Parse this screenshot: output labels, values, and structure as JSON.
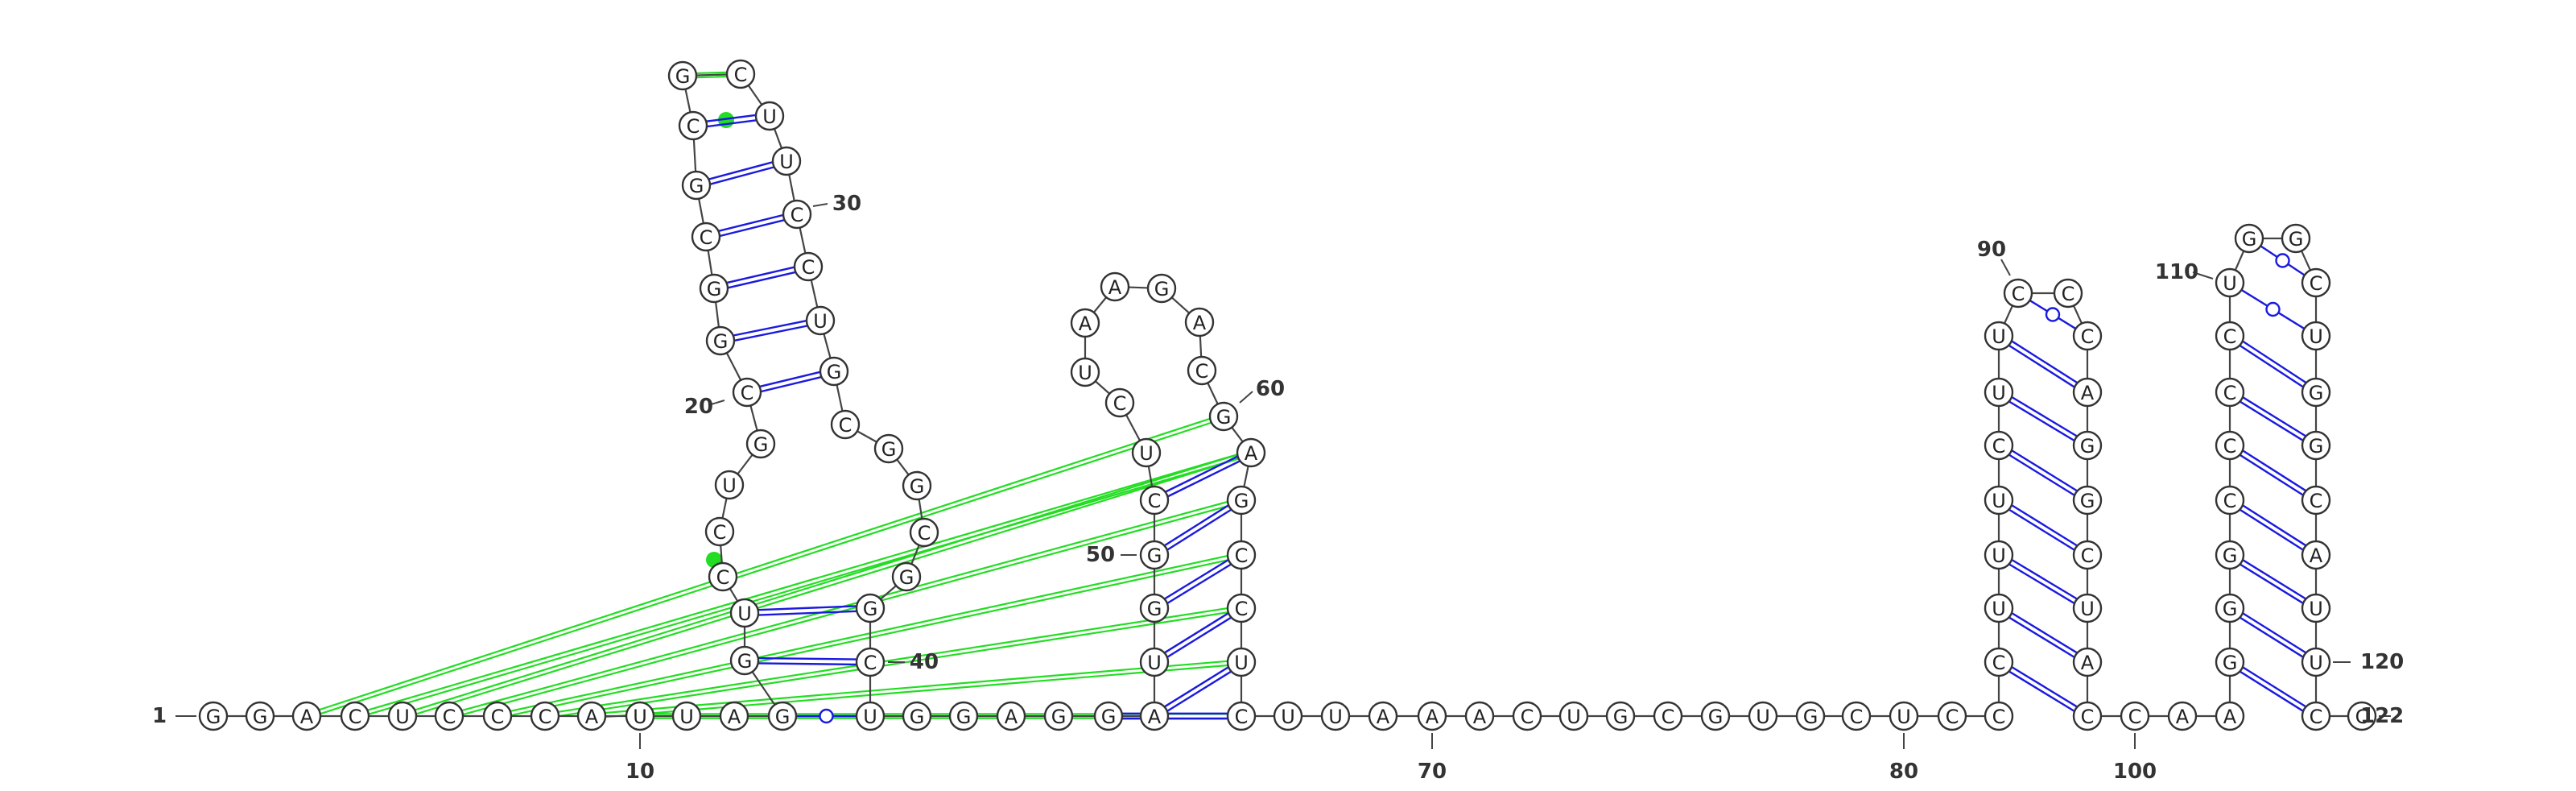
{
  "title": "RNA secondary structure diagram",
  "colors": {
    "background": "#ffffff",
    "watson_crick": "#1a1adf",
    "wobble": "#1a1adf",
    "pseudoknot": "#22dd22",
    "backbone": "#444444"
  },
  "sequence": "GGACUCCCAUUAGGUCCUGCGGCGCGCUUCCUGCGGCGGCUGGAGGAUGGCUCUAAGACGAGCCUCUUAAACUGCGUGCUCCCUUUCUUCCCAGGCUACCAAGGGCCCCUGGCUGGCAUUCC",
  "labels": {
    "n1": "1",
    "n10": "10",
    "n20": "20",
    "n30": "30",
    "n40": "40",
    "n50": "50",
    "n60": "60",
    "n70": "70",
    "n80": "80",
    "n90": "90",
    "n100": "100",
    "n110": "110",
    "n120": "120",
    "n122": "122"
  }
}
